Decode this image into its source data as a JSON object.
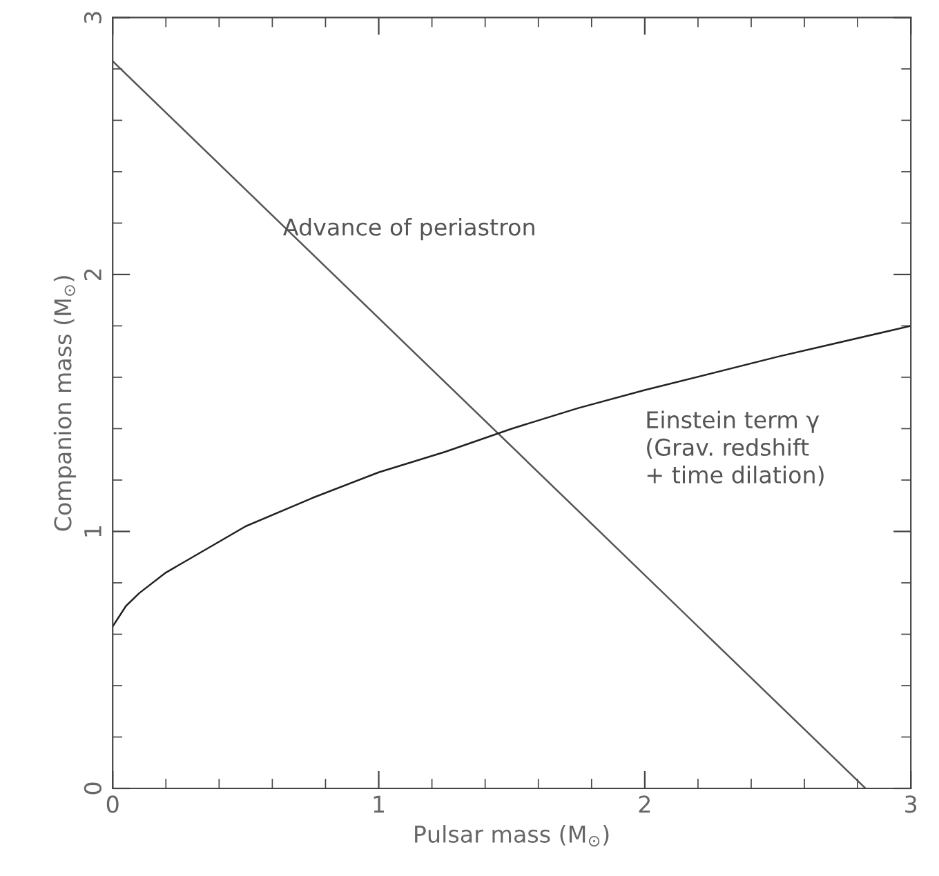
{
  "chart_data": {
    "type": "line",
    "xlabel": "Pulsar mass (M$_{⊙}$)",
    "ylabel": "Companion mass (M$_{⊙}$)",
    "xlim": [
      0,
      3
    ],
    "ylim": [
      0,
      3
    ],
    "xticks": [
      0,
      {
        "value": 0.2,
        "label": null
      },
      {
        "value": 0.4,
        "label": null
      },
      {
        "value": 0.6,
        "label": null
      },
      {
        "value": 0.8,
        "label": null
      },
      1,
      {
        "value": 1.2,
        "label": null
      },
      {
        "value": 1.4,
        "label": null
      },
      {
        "value": 1.6,
        "label": null
      },
      {
        "value": 1.8,
        "label": null
      },
      2,
      {
        "value": 2.2,
        "label": null
      },
      {
        "value": 2.4,
        "label": null
      },
      {
        "value": 2.6,
        "label": null
      },
      {
        "value": 2.8,
        "label": null
      },
      3
    ],
    "yticks": [
      0,
      {
        "value": 0.2,
        "label": null
      },
      {
        "value": 0.4,
        "label": null
      },
      {
        "value": 0.6,
        "label": null
      },
      {
        "value": 0.8,
        "label": null
      },
      1,
      {
        "value": 1.2,
        "label": null
      },
      {
        "value": 1.4,
        "label": null
      },
      {
        "value": 1.6,
        "label": null
      },
      {
        "value": 1.8,
        "label": null
      },
      2,
      {
        "value": 2.2,
        "label": null
      },
      {
        "value": 2.4,
        "label": null
      },
      {
        "value": 2.6,
        "label": null
      },
      {
        "value": 2.8,
        "label": null
      },
      3
    ],
    "grid": false,
    "legend": false,
    "marker": "none",
    "line_style": "solid",
    "series": [
      {
        "color": "#555555",
        "x": [
          0,
          2.83
        ],
        "values": [
          2.83,
          0
        ]
      },
      {
        "color": "#222222",
        "x": [
          0,
          0.05,
          0.1,
          0.2,
          0.3,
          0.5,
          0.75,
          1,
          1.25,
          1.5,
          1.75,
          2,
          2.5,
          3
        ],
        "values": [
          0.63,
          0.71,
          0.76,
          0.84,
          0.9,
          1.02,
          1.13,
          1.23,
          1.31,
          1.4,
          1.48,
          1.55,
          1.68,
          1.8
        ]
      }
    ],
    "annotations": [
      {
        "text": "Advance of periastron",
        "x": 0.64,
        "y": 2.22
      },
      "Einstein term γ\n(Grav. redshift\n+ time dilation)"
    ]
  }
}
